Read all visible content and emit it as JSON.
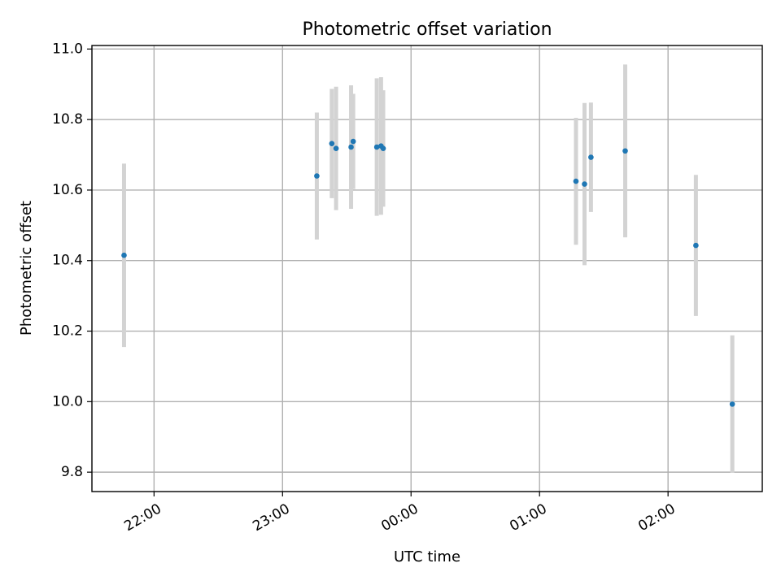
{
  "chart_data": {
    "type": "scatter",
    "title": "Photometric offset variation",
    "xlabel": "UTC time",
    "ylabel": "Photometric offset",
    "grid": true,
    "xlim": [
      "21:31",
      "02:44"
    ],
    "ylim": [
      9.745,
      11.01
    ],
    "x_ticks": [
      "22:00",
      "23:00",
      "00:00",
      "01:00",
      "02:00"
    ],
    "y_ticks": [
      "9.8",
      "10.0",
      "10.2",
      "10.4",
      "10.6",
      "10.8",
      "11.0"
    ],
    "colors": {
      "point": "#1f77b4",
      "errorbar": "#d3d3d3"
    },
    "points": [
      {
        "x": "21:46",
        "y": 10.415,
        "yerr": 0.26
      },
      {
        "x": "23:16",
        "y": 10.64,
        "yerr": 0.18
      },
      {
        "x": "23:23",
        "y": 10.732,
        "yerr": 0.155
      },
      {
        "x": "23:25",
        "y": 10.718,
        "yerr": 0.175
      },
      {
        "x": "23:32",
        "y": 10.722,
        "yerr": 0.175
      },
      {
        "x": "23:33",
        "y": 10.738,
        "yerr": 0.135
      },
      {
        "x": "23:44",
        "y": 10.722,
        "yerr": 0.195
      },
      {
        "x": "23:46",
        "y": 10.725,
        "yerr": 0.195
      },
      {
        "x": "23:47",
        "y": 10.718,
        "yerr": 0.165
      },
      {
        "x": "01:17",
        "y": 10.625,
        "yerr": 0.18
      },
      {
        "x": "01:21",
        "y": 10.617,
        "yerr": 0.23
      },
      {
        "x": "01:24",
        "y": 10.693,
        "yerr": 0.155
      },
      {
        "x": "01:40",
        "y": 10.711,
        "yerr": 0.245
      },
      {
        "x": "02:13",
        "y": 10.443,
        "yerr": 0.2
      },
      {
        "x": "02:30",
        "y": 9.993,
        "yerr": 0.195
      }
    ]
  }
}
